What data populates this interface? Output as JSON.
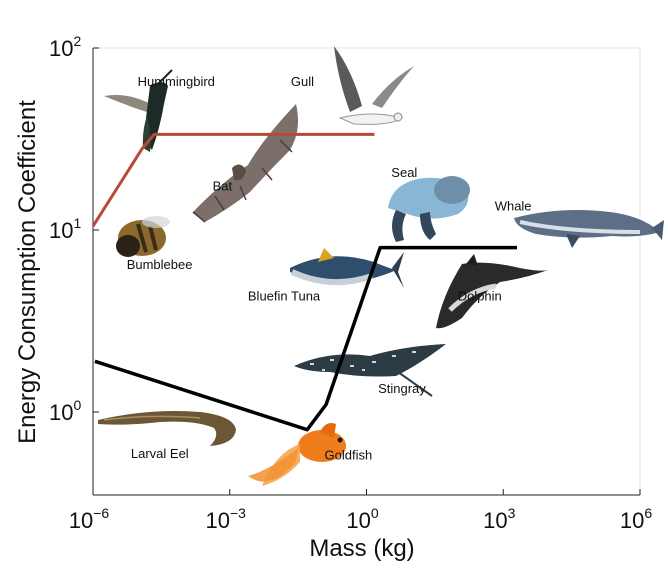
{
  "chart_data": {
    "type": "line",
    "xlabel": "Mass (kg)",
    "ylabel": "Energy Consumption Coefficient",
    "xscale": "log",
    "yscale": "log",
    "xlim": [
      1e-06,
      1000000.0
    ],
    "ylim": [
      0.35,
      100
    ],
    "x_ticks": [
      {
        "base": "10",
        "exp": "−6",
        "value": 1e-06
      },
      {
        "base": "10",
        "exp": "−3",
        "value": 0.001
      },
      {
        "base": "10",
        "exp": "0",
        "value": 1
      },
      {
        "base": "10",
        "exp": "3",
        "value": 1000.0
      },
      {
        "base": "10",
        "exp": "6",
        "value": 1000000.0
      }
    ],
    "y_ticks": [
      {
        "base": "10",
        "exp": "0",
        "value": 1
      },
      {
        "base": "10",
        "exp": "1",
        "value": 10
      },
      {
        "base": "10",
        "exp": "2",
        "value": 100
      }
    ],
    "grid": false,
    "series": [
      {
        "color": "#b5493a",
        "x": [
          1e-06,
          1.2e-05,
          2.2e-05,
          1.5
        ],
        "y": [
          10.5,
          28,
          33.5,
          33.5
        ]
      },
      {
        "color": "#000000",
        "x": [
          1.1e-06,
          0.05,
          0.13,
          2.0,
          2000
        ],
        "y": [
          1.9,
          0.8,
          1.1,
          8.0,
          8.0
        ]
      }
    ],
    "annotations": [
      {
        "text": "Hummingbird",
        "x": 9.5e-06,
        "y": 62
      },
      {
        "text": "Gull",
        "x": 0.022,
        "y": 62
      },
      {
        "text": "Bat",
        "x": 0.00042,
        "y": 16.5
      },
      {
        "text": "Seal",
        "x": 3.5,
        "y": 19.5
      },
      {
        "text": "Whale",
        "x": 650,
        "y": 12.8
      },
      {
        "text": "Bumblebee",
        "x": 5.5e-06,
        "y": 6.1
      },
      {
        "text": "Bluefin Tuna",
        "x": 0.0025,
        "y": 4.1
      },
      {
        "text": "Dolphin",
        "x": 100,
        "y": 4.1
      },
      {
        "text": "Stingray",
        "x": 1.8,
        "y": 1.27
      },
      {
        "text": "Larval Eel",
        "x": 6.8e-06,
        "y": 0.56
      },
      {
        "text": "Goldfish",
        "x": 0.12,
        "y": 0.55
      }
    ]
  }
}
